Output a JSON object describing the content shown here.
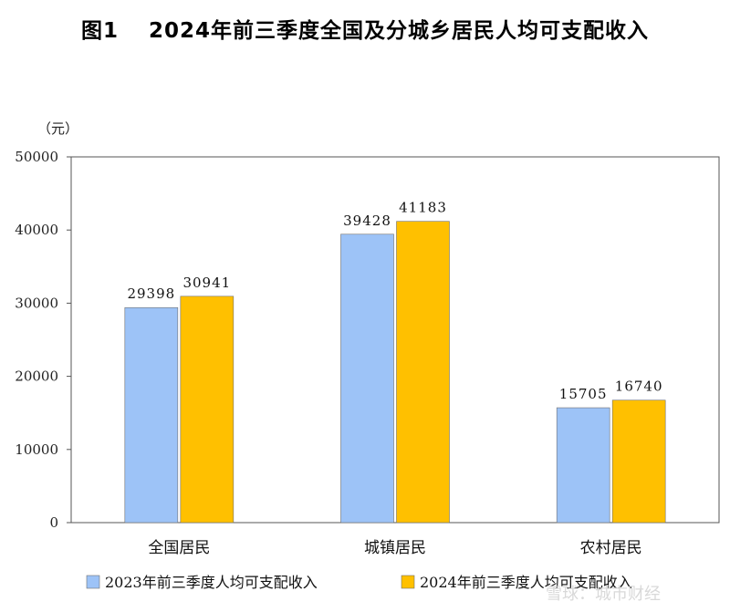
{
  "chart_data": {
    "type": "bar",
    "title": "图1　 2024年前三季度全国及分城乡居民人均可支配收入",
    "unit_label": "（元）",
    "categories": [
      "全国居民",
      "城镇居民",
      "农村居民"
    ],
    "series": [
      {
        "name": "2023年前三季度人均可支配收入",
        "values": [
          29398,
          39428,
          15705
        ],
        "color": "#9DC3F7"
      },
      {
        "name": "2024年前三季度人均可支配收入",
        "values": [
          30941,
          41183,
          16740
        ],
        "color": "#FFC000"
      }
    ],
    "data_labels": [
      [
        "29398",
        "39428",
        "15705"
      ],
      [
        "30941",
        "41183",
        "16740"
      ]
    ],
    "ylim": [
      0,
      50000
    ],
    "yticks": [
      0,
      10000,
      20000,
      30000,
      40000,
      50000
    ],
    "ytick_labels": [
      "0",
      "10000",
      "20000",
      "30000",
      "40000",
      "50000"
    ],
    "grid": false,
    "legend_position": "bottom"
  },
  "watermark": "雪球：城市财经"
}
